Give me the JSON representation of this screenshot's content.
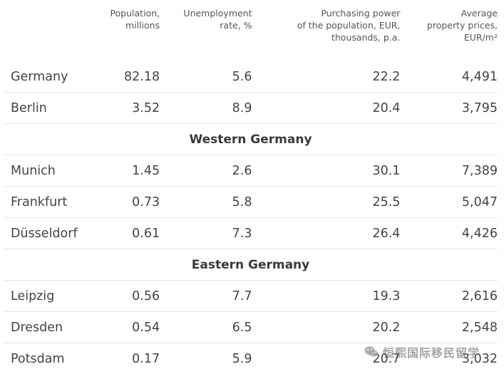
{
  "table": {
    "headers": {
      "name": "",
      "population": "Population,\nmillions",
      "unemployment": "Unemployment\nrate, %",
      "purchasing_power": "Purchasing power\nof the population, EUR,\nthousands, p.a.",
      "property_prices": "Average\nproperty prices,\nEUR/m²"
    },
    "rows": [
      {
        "name": "Germany",
        "population": "82.18",
        "unemployment": "5.6",
        "purchasing_power": "22.2",
        "property_price": "4,491"
      },
      {
        "name": "Berlin",
        "population": "3.52",
        "unemployment": "8.9",
        "purchasing_power": "20.4",
        "property_price": "3,795"
      }
    ],
    "group_western": "Western Germany",
    "western_rows": [
      {
        "name": "Munich",
        "population": "1.45",
        "unemployment": "2.6",
        "purchasing_power": "30.1",
        "property_price": "7,389"
      },
      {
        "name": "Frankfurt",
        "population": "0.73",
        "unemployment": "5.8",
        "purchasing_power": "25.5",
        "property_price": "5,047"
      },
      {
        "name": "Düsseldorf",
        "population": "0.61",
        "unemployment": "7.3",
        "purchasing_power": "26.4",
        "property_price": "4,426"
      }
    ],
    "group_eastern": "Eastern Germany",
    "eastern_rows": [
      {
        "name": "Leipzig",
        "population": "0.56",
        "unemployment": "7.7",
        "purchasing_power": "19.3",
        "property_price": "2,616"
      },
      {
        "name": "Dresden",
        "population": "0.54",
        "unemployment": "6.5",
        "purchasing_power": "20.2",
        "property_price": "2,548"
      },
      {
        "name": "Potsdam",
        "population": "0.17",
        "unemployment": "5.9",
        "purchasing_power": "20.7",
        "property_price": "3,032"
      }
    ]
  },
  "watermark": {
    "icon": "wechat-icon",
    "text": "恒熙国际移民留学"
  }
}
